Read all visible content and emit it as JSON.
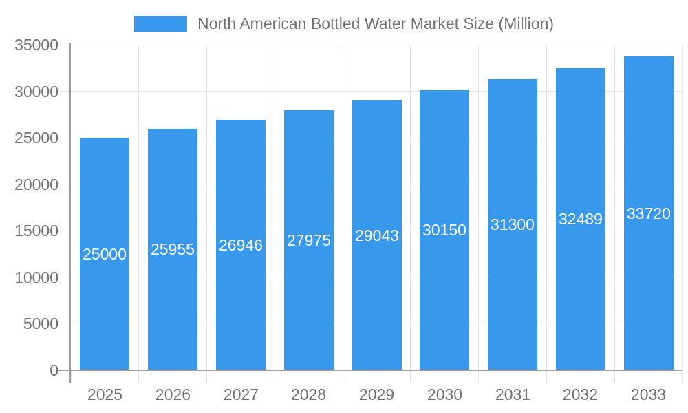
{
  "chart_data": {
    "type": "bar",
    "title": "North American Bottled Water Market Size (Million)",
    "legend": {
      "label": "North American Bottled Water Market Size (Million)",
      "position": "top-center"
    },
    "categories": [
      "2025",
      "2026",
      "2027",
      "2028",
      "2029",
      "2030",
      "2031",
      "2032",
      "2033"
    ],
    "series": [
      {
        "name": "North American Bottled Water Market Size (Million)",
        "values": [
          25000,
          25955,
          26946,
          27975,
          29043,
          30150,
          31300,
          32489,
          33720
        ]
      }
    ],
    "bar_value_labels": [
      "25000",
      "25955",
      "26946",
      "27975",
      "29043",
      "30150",
      "31300",
      "32489",
      "33720"
    ],
    "value_label_position": "inside-center",
    "xlabel": "",
    "ylabel": "",
    "ylim": [
      0,
      35000
    ],
    "yticks": [
      0,
      5000,
      10000,
      15000,
      20000,
      25000,
      30000,
      35000
    ],
    "ytick_labels": [
      "0",
      "5000",
      "10000",
      "15000",
      "20000",
      "25000",
      "30000",
      "35000"
    ],
    "grid": true,
    "colors": {
      "bar": "#3899EC",
      "bar_value_label": "#FFFFFF",
      "axis_text": "#737373",
      "grid_line": "#E6E6E6",
      "axis_line": "#9E9E9E",
      "background": "#FFFFFF"
    }
  }
}
